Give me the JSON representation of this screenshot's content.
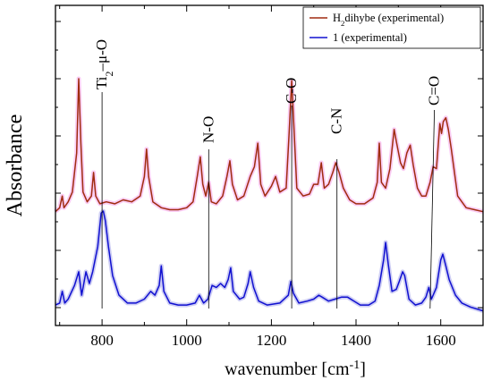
{
  "chart_data": {
    "type": "line",
    "xlabel": "wavenumber [cm⁻¹]",
    "ylabel": "Absorbance",
    "xlim": [
      690,
      1700
    ],
    "ylim": [
      0,
      1.5
    ],
    "x_ticks": [
      800,
      1000,
      1200,
      1400,
      1600
    ],
    "y_ticks_shown": false,
    "grid": false,
    "legend_position": "top-right",
    "series": [
      {
        "name": "H₂dihybe (experimental)",
        "color": "#a02c10",
        "halo_color": "#f8b8f0",
        "baseline": 0.5,
        "points": [
          [
            690,
            0.5
          ],
          [
            700,
            0.52
          ],
          [
            706,
            0.58
          ],
          [
            710,
            0.52
          ],
          [
            720,
            0.55
          ],
          [
            730,
            0.6
          ],
          [
            740,
            0.8
          ],
          [
            745,
            1.18
          ],
          [
            750,
            0.85
          ],
          [
            755,
            0.6
          ],
          [
            765,
            0.55
          ],
          [
            775,
            0.58
          ],
          [
            780,
            0.7
          ],
          [
            785,
            0.58
          ],
          [
            795,
            0.54
          ],
          [
            810,
            0.55
          ],
          [
            830,
            0.54
          ],
          [
            850,
            0.56
          ],
          [
            870,
            0.55
          ],
          [
            890,
            0.58
          ],
          [
            900,
            0.68
          ],
          [
            905,
            0.82
          ],
          [
            910,
            0.68
          ],
          [
            920,
            0.55
          ],
          [
            940,
            0.52
          ],
          [
            960,
            0.51
          ],
          [
            980,
            0.51
          ],
          [
            1000,
            0.52
          ],
          [
            1015,
            0.55
          ],
          [
            1025,
            0.68
          ],
          [
            1032,
            0.78
          ],
          [
            1038,
            0.64
          ],
          [
            1045,
            0.58
          ],
          [
            1052,
            0.65
          ],
          [
            1058,
            0.55
          ],
          [
            1070,
            0.54
          ],
          [
            1085,
            0.58
          ],
          [
            1095,
            0.68
          ],
          [
            1102,
            0.76
          ],
          [
            1108,
            0.64
          ],
          [
            1120,
            0.56
          ],
          [
            1135,
            0.58
          ],
          [
            1150,
            0.68
          ],
          [
            1160,
            0.73
          ],
          [
            1168,
            0.85
          ],
          [
            1175,
            0.64
          ],
          [
            1185,
            0.58
          ],
          [
            1200,
            0.63
          ],
          [
            1210,
            0.68
          ],
          [
            1220,
            0.6
          ],
          [
            1235,
            0.62
          ],
          [
            1242,
            0.9
          ],
          [
            1248,
            1.17
          ],
          [
            1254,
            0.9
          ],
          [
            1260,
            0.62
          ],
          [
            1275,
            0.58
          ],
          [
            1290,
            0.59
          ],
          [
            1300,
            0.64
          ],
          [
            1310,
            0.64
          ],
          [
            1318,
            0.75
          ],
          [
            1325,
            0.62
          ],
          [
            1335,
            0.64
          ],
          [
            1345,
            0.7
          ],
          [
            1352,
            0.75
          ],
          [
            1360,
            0.7
          ],
          [
            1370,
            0.62
          ],
          [
            1385,
            0.56
          ],
          [
            1400,
            0.54
          ],
          [
            1420,
            0.54
          ],
          [
            1440,
            0.57
          ],
          [
            1450,
            0.65
          ],
          [
            1455,
            0.85
          ],
          [
            1460,
            0.65
          ],
          [
            1470,
            0.62
          ],
          [
            1480,
            0.72
          ],
          [
            1490,
            0.92
          ],
          [
            1495,
            0.86
          ],
          [
            1505,
            0.75
          ],
          [
            1512,
            0.72
          ],
          [
            1520,
            0.8
          ],
          [
            1528,
            0.84
          ],
          [
            1535,
            0.74
          ],
          [
            1545,
            0.62
          ],
          [
            1555,
            0.58
          ],
          [
            1565,
            0.58
          ],
          [
            1575,
            0.65
          ],
          [
            1582,
            0.73
          ],
          [
            1590,
            0.72
          ],
          [
            1598,
            0.95
          ],
          [
            1602,
            0.9
          ],
          [
            1606,
            0.96
          ],
          [
            1612,
            0.98
          ],
          [
            1618,
            0.92
          ],
          [
            1625,
            0.82
          ],
          [
            1640,
            0.58
          ],
          [
            1660,
            0.52
          ],
          [
            1680,
            0.51
          ],
          [
            1700,
            0.5
          ]
        ]
      },
      {
        "name": "1 (experimental)",
        "color": "#1010d0",
        "halo_color": "#b8b8f0",
        "baseline": 0.0,
        "points": [
          [
            690,
            0.05
          ],
          [
            700,
            0.06
          ],
          [
            706,
            0.12
          ],
          [
            712,
            0.06
          ],
          [
            720,
            0.08
          ],
          [
            735,
            0.15
          ],
          [
            745,
            0.22
          ],
          [
            752,
            0.1
          ],
          [
            762,
            0.22
          ],
          [
            770,
            0.16
          ],
          [
            778,
            0.22
          ],
          [
            790,
            0.35
          ],
          [
            798,
            0.52
          ],
          [
            803,
            0.53
          ],
          [
            808,
            0.48
          ],
          [
            815,
            0.35
          ],
          [
            825,
            0.2
          ],
          [
            840,
            0.1
          ],
          [
            860,
            0.06
          ],
          [
            880,
            0.06
          ],
          [
            900,
            0.08
          ],
          [
            915,
            0.12
          ],
          [
            925,
            0.1
          ],
          [
            935,
            0.15
          ],
          [
            940,
            0.25
          ],
          [
            946,
            0.12
          ],
          [
            960,
            0.06
          ],
          [
            980,
            0.05
          ],
          [
            1000,
            0.05
          ],
          [
            1020,
            0.06
          ],
          [
            1030,
            0.1
          ],
          [
            1040,
            0.06
          ],
          [
            1050,
            0.08
          ],
          [
            1060,
            0.15
          ],
          [
            1070,
            0.14
          ],
          [
            1080,
            0.16
          ],
          [
            1090,
            0.14
          ],
          [
            1098,
            0.18
          ],
          [
            1104,
            0.24
          ],
          [
            1110,
            0.12
          ],
          [
            1125,
            0.08
          ],
          [
            1135,
            0.09
          ],
          [
            1145,
            0.16
          ],
          [
            1150,
            0.22
          ],
          [
            1158,
            0.14
          ],
          [
            1170,
            0.07
          ],
          [
            1190,
            0.05
          ],
          [
            1220,
            0.06
          ],
          [
            1240,
            0.1
          ],
          [
            1246,
            0.17
          ],
          [
            1252,
            0.11
          ],
          [
            1265,
            0.06
          ],
          [
            1285,
            0.07
          ],
          [
            1300,
            0.08
          ],
          [
            1312,
            0.1
          ],
          [
            1320,
            0.09
          ],
          [
            1335,
            0.07
          ],
          [
            1350,
            0.08
          ],
          [
            1365,
            0.09
          ],
          [
            1380,
            0.09
          ],
          [
            1395,
            0.07
          ],
          [
            1410,
            0.05
          ],
          [
            1430,
            0.05
          ],
          [
            1445,
            0.07
          ],
          [
            1455,
            0.15
          ],
          [
            1465,
            0.28
          ],
          [
            1470,
            0.37
          ],
          [
            1476,
            0.26
          ],
          [
            1485,
            0.12
          ],
          [
            1495,
            0.13
          ],
          [
            1502,
            0.17
          ],
          [
            1510,
            0.22
          ],
          [
            1515,
            0.2
          ],
          [
            1525,
            0.08
          ],
          [
            1540,
            0.05
          ],
          [
            1555,
            0.06
          ],
          [
            1565,
            0.09
          ],
          [
            1572,
            0.14
          ],
          [
            1578,
            0.08
          ],
          [
            1590,
            0.14
          ],
          [
            1600,
            0.28
          ],
          [
            1605,
            0.31
          ],
          [
            1612,
            0.25
          ],
          [
            1620,
            0.18
          ],
          [
            1635,
            0.1
          ],
          [
            1650,
            0.06
          ],
          [
            1670,
            0.04
          ],
          [
            1700,
            0.02
          ]
        ]
      }
    ],
    "annotations": [
      {
        "x": 800,
        "text": "Ti₂–μ-O"
      },
      {
        "x": 1052,
        "text": "N-O"
      },
      {
        "x": 1248,
        "text": "C-O"
      },
      {
        "x": 1355,
        "text": "C-N"
      },
      {
        "x": 1575,
        "text": "C=O"
      }
    ],
    "marker_lines": [
      {
        "x": 800,
        "text_index": 0
      },
      {
        "x": 1052,
        "text_index": 1
      },
      {
        "x": 1248,
        "text_index": 2
      },
      {
        "x": 1355,
        "text_index": 3
      },
      {
        "x": 1575,
        "text_index": 4
      }
    ]
  }
}
